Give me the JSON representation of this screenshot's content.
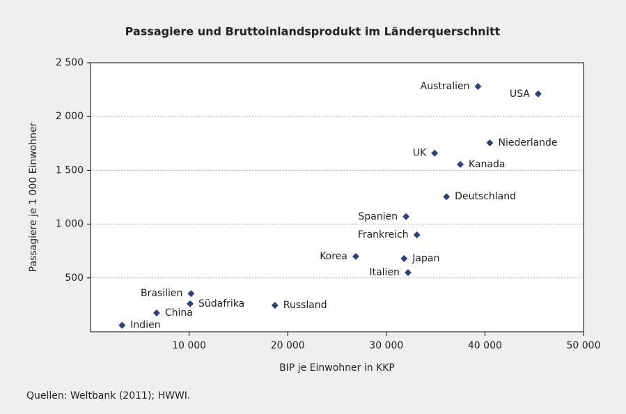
{
  "chart_data": {
    "type": "scatter",
    "title": "Passagiere und Bruttoinlandsprodukt im Länderquerschnitt",
    "x_label": "BIP je Einwohner in KKP",
    "y_label": "Passagiere je 1 000 Einwohner",
    "source": "Quellen: Weltbank (2011); HWWI.",
    "color": "#2e4275",
    "grid": true,
    "labels": [
      "Australien",
      "USA",
      "Niederlande",
      "UK",
      "Kanada",
      "Deutschland",
      "Spanien",
      "Frankreich",
      "Korea",
      "Japan",
      "Italien",
      "Brasilien",
      "Südafrika",
      "China",
      "Russland",
      "Indien"
    ],
    "x": [
      39300,
      45400,
      40500,
      34900,
      37500,
      36100,
      32000,
      33100,
      26900,
      31800,
      32200,
      10200,
      10100,
      6700,
      18700,
      3200
    ],
    "values": [
      2280,
      2210,
      1755,
      1660,
      1555,
      1255,
      1070,
      900,
      700,
      680,
      550,
      355,
      260,
      175,
      245,
      60
    ],
    "xlim": [
      0,
      50000
    ],
    "ylim": [
      0,
      2500
    ],
    "xticks": [
      {
        "value": 10000,
        "label": "10 000"
      },
      {
        "value": 20000,
        "label": "20 000"
      },
      {
        "value": 30000,
        "label": "30 000"
      },
      {
        "value": 40000,
        "label": "40 000"
      },
      {
        "value": 50000,
        "label": "50 000"
      }
    ],
    "yticks": [
      500,
      {
        "value": 1000,
        "label": "1 000"
      },
      {
        "value": 1500,
        "label": "1 500"
      },
      {
        "value": 2000,
        "label": "2 000"
      },
      {
        "value": 2500,
        "label": "2 500"
      }
    ]
  }
}
